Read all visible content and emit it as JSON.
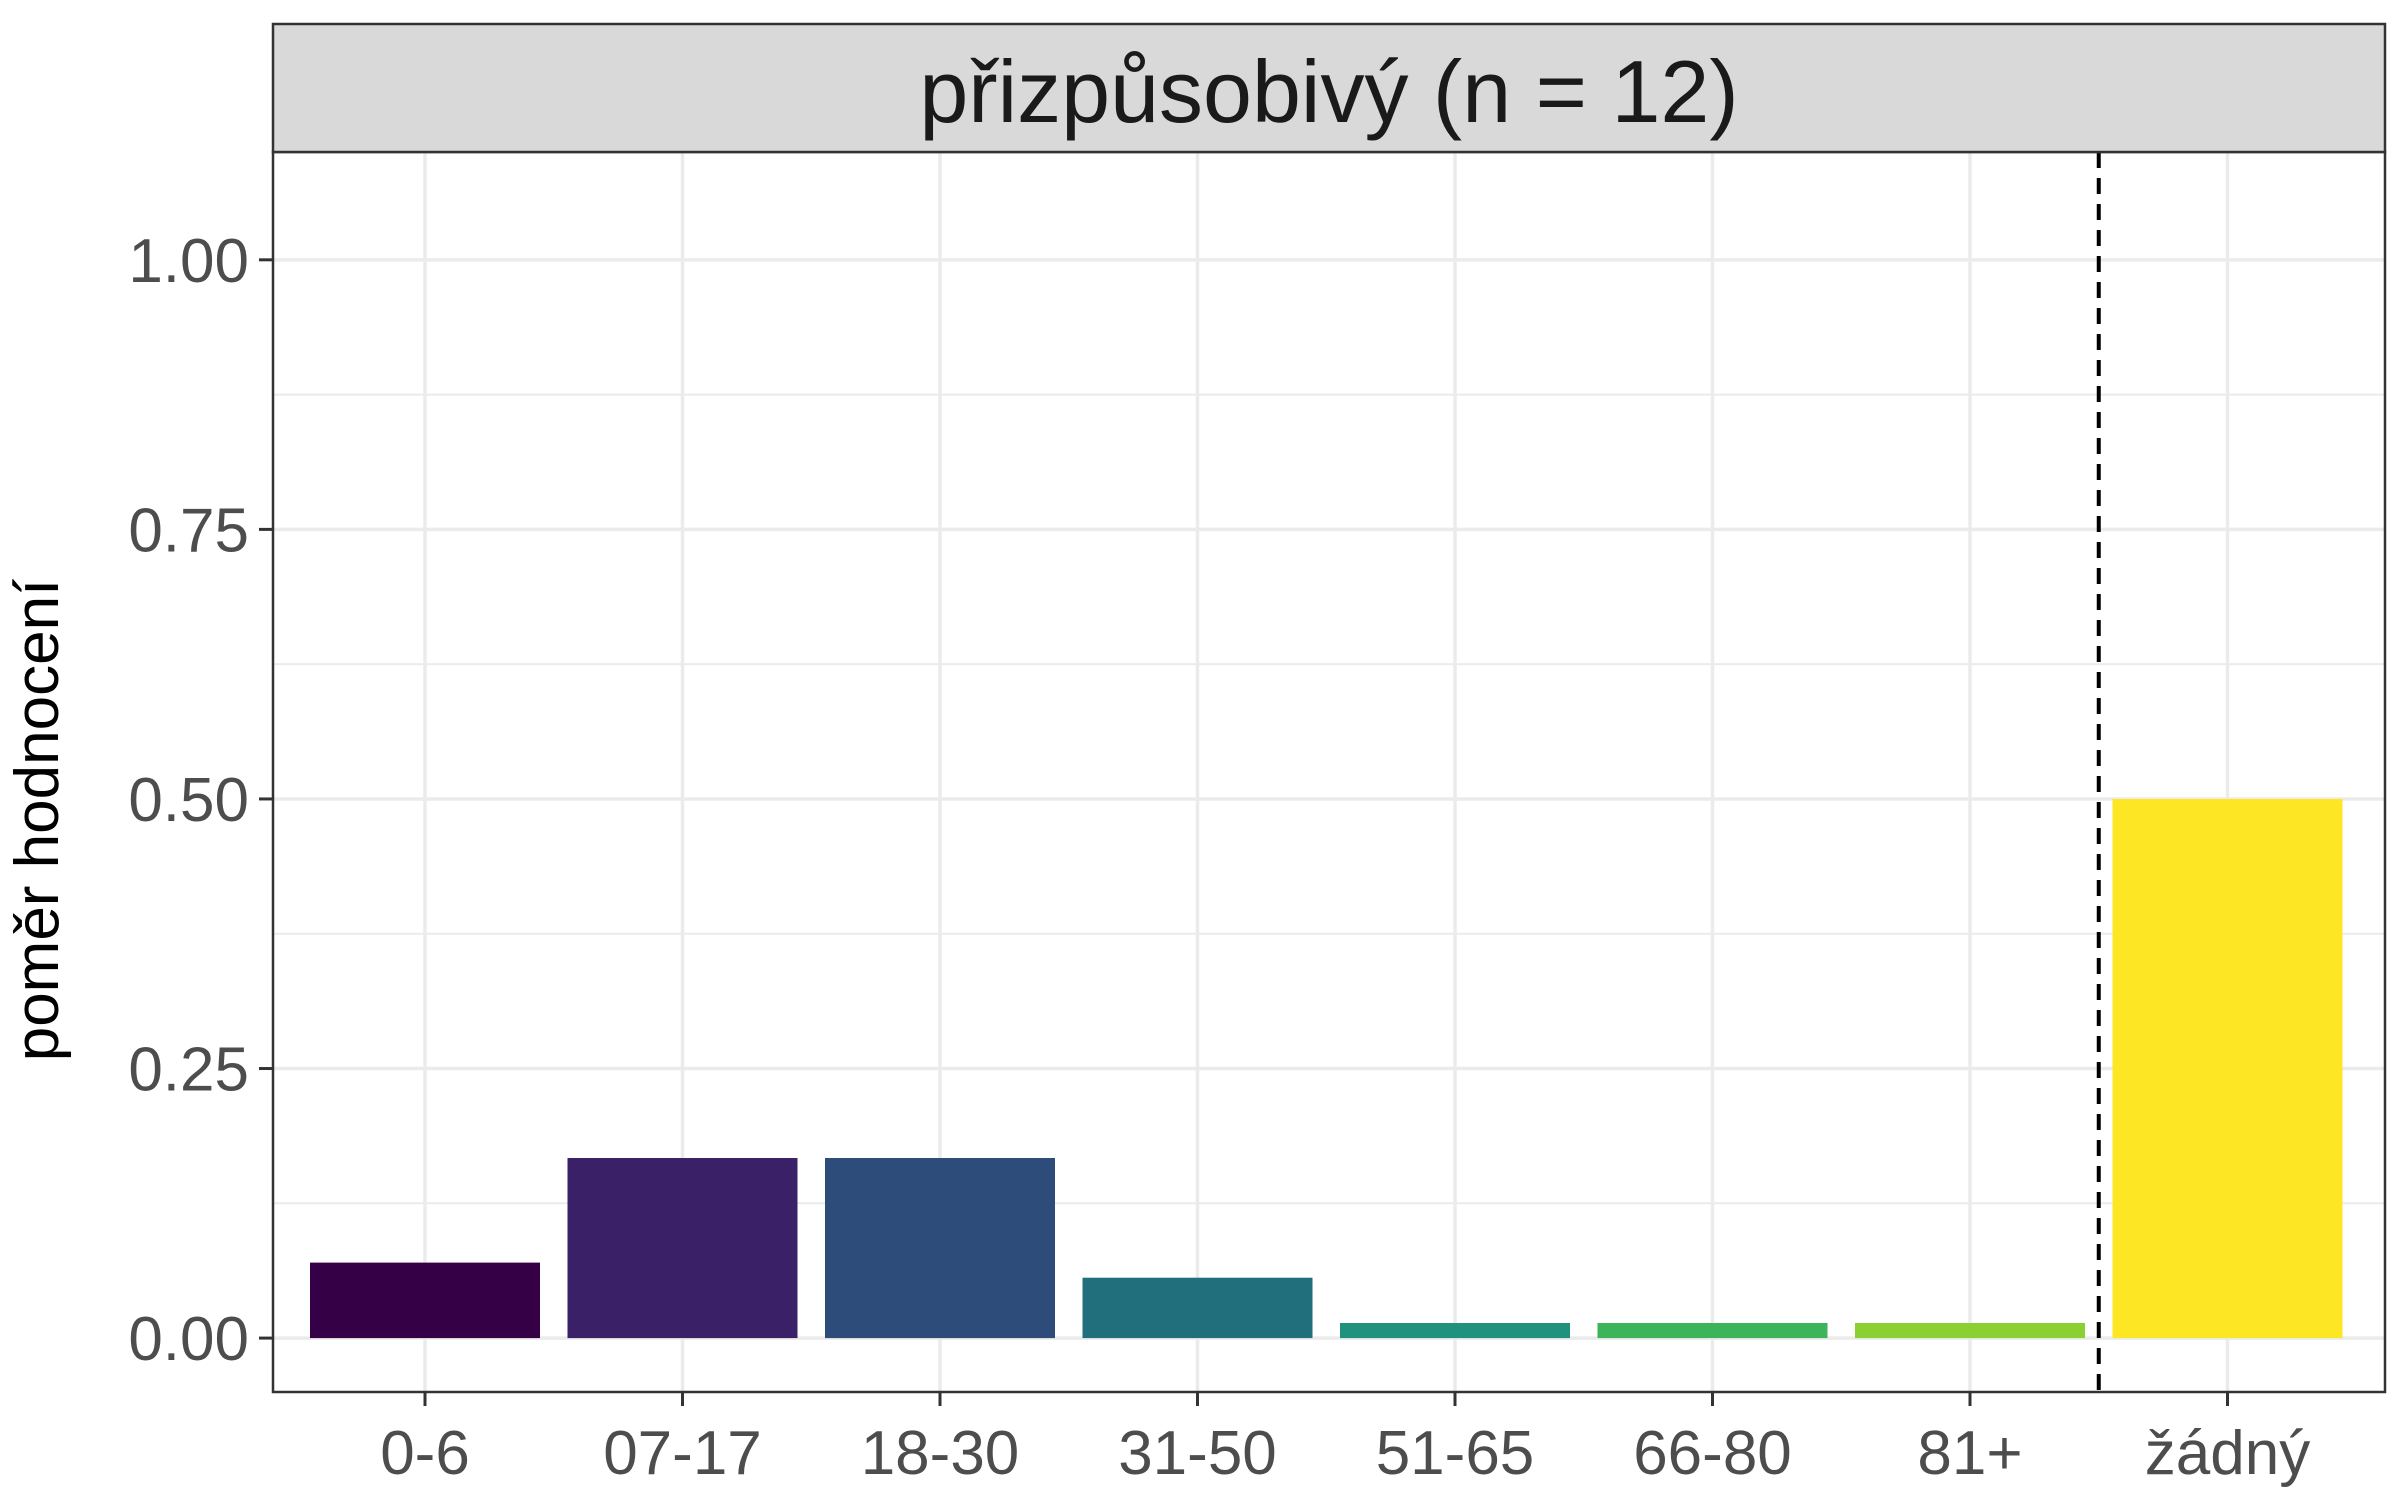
{
  "chart_data": {
    "type": "bar",
    "title": "přizpůsobivý (n = 12)",
    "xlabel": "",
    "ylabel": "poměr hodnocení",
    "categories": [
      "0-6",
      "07-17",
      "18-30",
      "31-50",
      "51-65",
      "66-80",
      "81+",
      "žádný"
    ],
    "values": [
      0.07,
      0.167,
      0.167,
      0.056,
      0.014,
      0.014,
      0.014,
      0.5
    ],
    "colors": [
      "#360046",
      "#3A2167",
      "#2D4C7A",
      "#216F7C",
      "#1F917C",
      "#3DB35A",
      "#8AD032",
      "#FDE725"
    ],
    "ylim": [
      -0.05,
      1.1
    ],
    "yticks": [
      0.0,
      0.25,
      0.5,
      0.75,
      1.0
    ],
    "ytick_labels": [
      "0.00",
      "0.25",
      "0.50",
      "0.75",
      "1.00"
    ],
    "grid": true,
    "reference_line": {
      "between": [
        "81+",
        "žádný"
      ],
      "style": "dashed"
    }
  }
}
